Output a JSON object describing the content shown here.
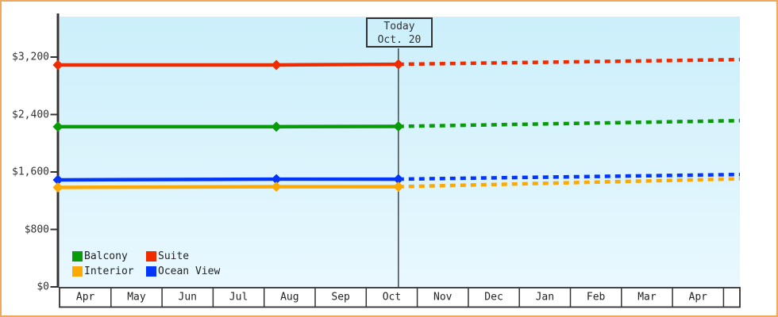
{
  "colors": {
    "frame_border": "#EFA85C",
    "plot_bg_top": "#CBEFFB",
    "plot_bg_bottom": "#E9F8FE",
    "axis": "#333333",
    "table_bg": "#FFFFFF",
    "today_line": "#444444",
    "text": "#333333"
  },
  "legend": {
    "items": [
      {
        "label": "Balcony",
        "color": "#0A9B0A"
      },
      {
        "label": "Suite",
        "color": "#EF2B00"
      },
      {
        "label": "Interior",
        "color": "#FBA905"
      },
      {
        "label": "Ocean View",
        "color": "#0435FA"
      }
    ]
  },
  "chart_data": {
    "type": "line",
    "title": "",
    "x_axis": {
      "months": [
        "Apr",
        "May",
        "Jun",
        "Jul",
        "Aug",
        "Sep",
        "Oct",
        "Nov",
        "Dec",
        "Jan",
        "Feb",
        "Mar",
        "Apr"
      ],
      "x_end_months": 13.32
    },
    "y_axis": {
      "ticks": [
        {
          "value": 0,
          "label": "$0"
        },
        {
          "value": 800,
          "label": "$800"
        },
        {
          "value": 1600,
          "label": "$1,600"
        },
        {
          "value": 2400,
          "label": "$2,400"
        },
        {
          "value": 3200,
          "label": "$3,200"
        }
      ],
      "ylim": [
        0,
        3760
      ]
    },
    "today": {
      "x_months_from_start": 6.63,
      "label_line1": "Today",
      "label_line2": "Oct. 20"
    },
    "series": [
      {
        "name": "Suite",
        "color": "#EF2B00",
        "solid_points": [
          {
            "x": -0.04,
            "price": 3090
          },
          {
            "x": 4.24,
            "price": 3090
          },
          {
            "x": 6.63,
            "price": 3100
          }
        ],
        "forecast_dashed_points": [
          {
            "x": 6.63,
            "price": 3100
          },
          {
            "x": 13.32,
            "price": 3165
          }
        ]
      },
      {
        "name": "Balcony",
        "color": "#0A9B0A",
        "solid_points": [
          {
            "x": -0.04,
            "price": 2230
          },
          {
            "x": 4.24,
            "price": 2230
          },
          {
            "x": 6.63,
            "price": 2235
          }
        ],
        "forecast_dashed_points": [
          {
            "x": 6.63,
            "price": 2235
          },
          {
            "x": 13.32,
            "price": 2315
          }
        ]
      },
      {
        "name": "Ocean View",
        "color": "#0435FA",
        "solid_points": [
          {
            "x": -0.04,
            "price": 1490
          },
          {
            "x": 4.24,
            "price": 1500
          },
          {
            "x": 6.63,
            "price": 1500
          }
        ],
        "forecast_dashed_points": [
          {
            "x": 6.63,
            "price": 1500
          },
          {
            "x": 13.32,
            "price": 1565
          }
        ]
      },
      {
        "name": "Interior",
        "color": "#FBA905",
        "solid_points": [
          {
            "x": -0.04,
            "price": 1385
          },
          {
            "x": 4.24,
            "price": 1395
          },
          {
            "x": 6.63,
            "price": 1395
          }
        ],
        "forecast_dashed_points": [
          {
            "x": 6.63,
            "price": 1395
          },
          {
            "x": 13.32,
            "price": 1505
          }
        ]
      }
    ],
    "legend_position": "bottom-left inside plot"
  }
}
